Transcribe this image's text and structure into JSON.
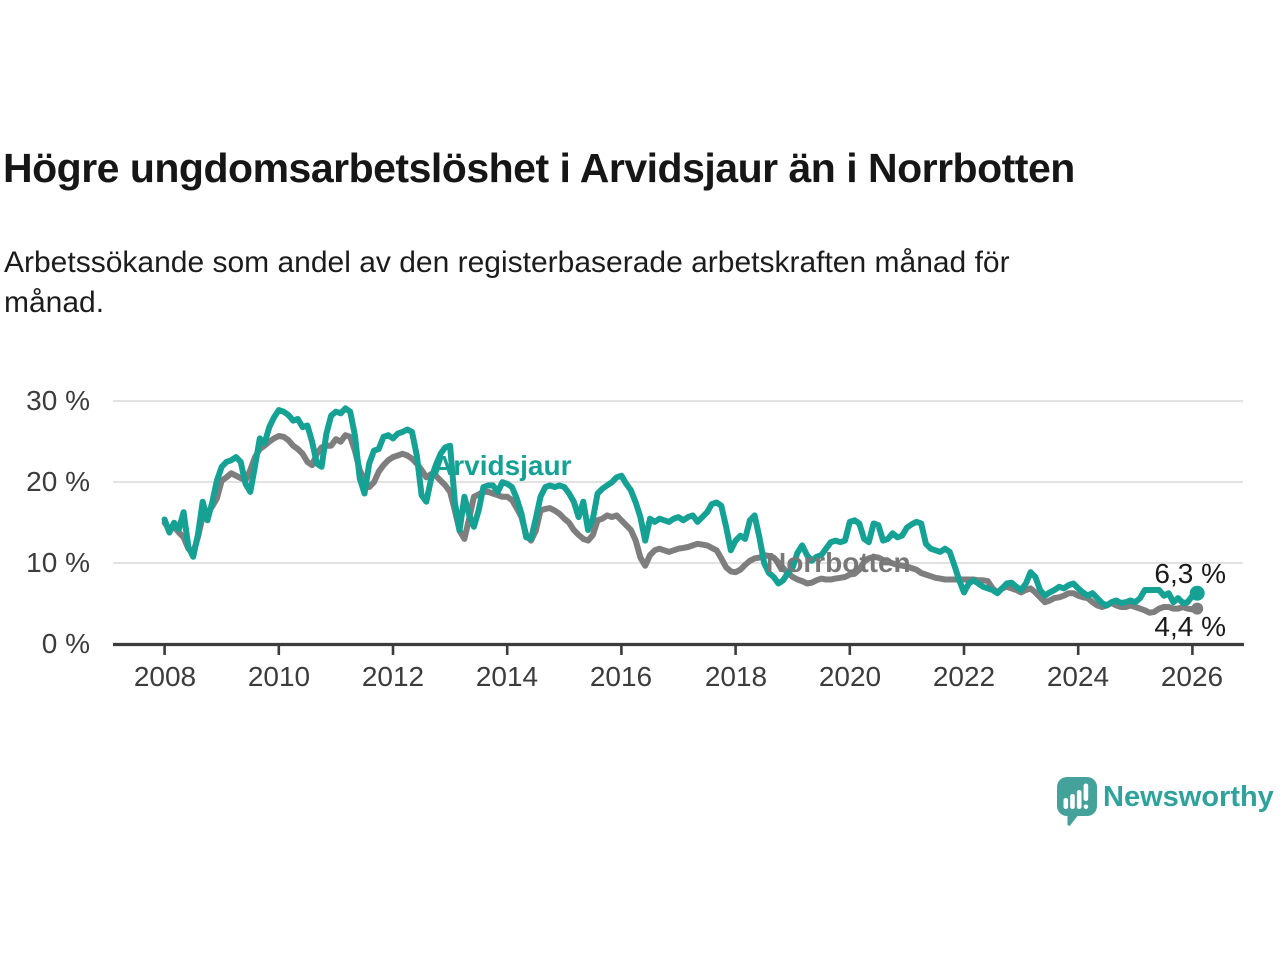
{
  "header": {
    "title": "Högre ungdomsarbetslöshet i Arvidsjaur än i Norrbotten",
    "subtitle_line1": "Arbetssökande som andel av den registerbaserade arbetskraften månad för",
    "subtitle_line2": "månad."
  },
  "chart_data": {
    "type": "line",
    "unit": "percent",
    "frequency": "monthly",
    "x_start": "2008-01",
    "x_end": "2026-02",
    "ylim": [
      0,
      30
    ],
    "grid": "horizontal",
    "axis_color": "#3c3c3c",
    "gridline_color": "#e2e2e2",
    "y_ticks": [
      "30 %",
      "20 %",
      "10 %",
      "0 %"
    ],
    "x_ticks": [
      "2008",
      "2010",
      "2012",
      "2014",
      "2016",
      "2018",
      "2020",
      "2022",
      "2024",
      "2026"
    ],
    "series": [
      {
        "name": "Arvidsjaur",
        "label": "Arvidsjaur",
        "color": "#16a195",
        "end_label": "6,3 %",
        "end_value": 6.3,
        "values": [
          15.4,
          13.8,
          15.0,
          14.2,
          16.3,
          12.0,
          10.8,
          13.5,
          17.6,
          15.3,
          17.5,
          20.2,
          21.9,
          22.5,
          22.7,
          23.1,
          22.5,
          19.8,
          18.8,
          22.0,
          25.4,
          24.8,
          26.8,
          28.0,
          28.9,
          28.7,
          28.3,
          27.6,
          27.8,
          26.8,
          27.0,
          25.0,
          22.3,
          21.9,
          26.0,
          28.2,
          28.7,
          28.5,
          29.1,
          28.7,
          25.8,
          20.5,
          18.6,
          22.3,
          23.9,
          24.1,
          25.6,
          25.8,
          25.4,
          26.0,
          26.2,
          26.5,
          26.2,
          23.3,
          18.4,
          17.6,
          20.4,
          22.1,
          23.5,
          24.3,
          24.5,
          17.5,
          14.1,
          18.2,
          16.0,
          14.5,
          16.5,
          19.4,
          19.6,
          19.6,
          18.8,
          20.0,
          19.8,
          19.4,
          18.0,
          16.1,
          13.2,
          13.0,
          15.5,
          18.2,
          19.4,
          19.6,
          19.4,
          19.6,
          19.4,
          18.6,
          17.6,
          15.7,
          17.6,
          14.1,
          15.5,
          18.6,
          19.2,
          19.6,
          20.0,
          20.6,
          20.8,
          19.8,
          19.0,
          17.5,
          15.7,
          12.8,
          15.5,
          15.1,
          15.5,
          15.3,
          15.1,
          15.5,
          15.7,
          15.3,
          15.7,
          15.9,
          15.1,
          15.7,
          16.3,
          17.3,
          17.5,
          17.1,
          14.5,
          11.6,
          12.8,
          13.4,
          13.0,
          15.3,
          15.9,
          13.2,
          10.0,
          8.8,
          8.3,
          7.5,
          7.9,
          8.8,
          9.5,
          11.3,
          12.2,
          11.0,
          10.3,
          10.8,
          11.0,
          11.8,
          12.6,
          12.8,
          12.6,
          12.8,
          15.1,
          15.3,
          14.9,
          13.0,
          12.6,
          14.9,
          14.7,
          12.8,
          13.0,
          13.7,
          13.2,
          13.4,
          14.4,
          14.8,
          15.1,
          14.9,
          12.4,
          11.8,
          11.6,
          11.4,
          11.8,
          11.4,
          9.7,
          7.9,
          6.4,
          7.5,
          7.9,
          7.5,
          7.1,
          6.9,
          6.7,
          6.3,
          6.9,
          7.5,
          7.6,
          7.1,
          6.7,
          7.5,
          8.9,
          8.3,
          6.7,
          6.0,
          6.4,
          6.7,
          7.1,
          6.9,
          7.3,
          7.5,
          6.9,
          6.4,
          6.0,
          6.3,
          5.7,
          5.1,
          4.8,
          5.2,
          5.4,
          5.1,
          5.2,
          5.4,
          5.2,
          5.7,
          6.7,
          6.7,
          6.7,
          6.7,
          6.0,
          6.3,
          5.2,
          5.7,
          5.1,
          5.2,
          6.0,
          6.3
        ]
      },
      {
        "name": "Norrbotten",
        "label": "Norrbotten",
        "color": "#7e7e7e",
        "end_label": "4,4 %",
        "end_value": 4.4,
        "values": [
          15.0,
          14.2,
          14.5,
          13.8,
          13.2,
          11.8,
          11.3,
          13.2,
          15.8,
          16.2,
          17.0,
          18.0,
          20.2,
          20.6,
          21.1,
          20.8,
          20.5,
          20.2,
          21.5,
          23.1,
          24.1,
          24.5,
          25.0,
          25.4,
          25.7,
          25.6,
          25.2,
          24.5,
          24.1,
          23.5,
          22.5,
          22.1,
          23.5,
          24.3,
          24.5,
          24.5,
          25.3,
          25.0,
          25.8,
          25.6,
          23.9,
          21.5,
          20.2,
          19.4,
          20.0,
          21.3,
          22.1,
          22.7,
          23.1,
          23.3,
          23.5,
          23.3,
          22.9,
          22.3,
          21.5,
          20.6,
          21.0,
          20.8,
          20.2,
          19.6,
          18.8,
          16.5,
          14.0,
          13.0,
          15.5,
          18.2,
          18.5,
          18.8,
          18.8,
          18.6,
          18.4,
          18.2,
          18.2,
          17.8,
          16.8,
          15.7,
          13.5,
          12.8,
          14.0,
          16.5,
          16.7,
          16.8,
          16.5,
          16.1,
          15.5,
          15.0,
          14.1,
          13.5,
          13.0,
          12.8,
          13.5,
          15.3,
          15.5,
          15.9,
          15.7,
          15.9,
          15.3,
          14.7,
          14.1,
          12.8,
          10.7,
          9.7,
          11.0,
          11.6,
          11.8,
          11.6,
          11.4,
          11.6,
          11.8,
          11.9,
          12.0,
          12.2,
          12.4,
          12.3,
          12.2,
          11.9,
          11.6,
          10.6,
          9.5,
          9.0,
          8.9,
          9.2,
          9.8,
          10.3,
          10.6,
          10.7,
          11.0,
          10.9,
          10.7,
          10.1,
          9.4,
          8.8,
          8.3,
          8.0,
          7.8,
          7.5,
          7.6,
          7.9,
          8.1,
          8.0,
          8.0,
          8.1,
          8.2,
          8.3,
          8.6,
          8.7,
          9.2,
          10.2,
          10.6,
          10.8,
          10.7,
          10.4,
          10.2,
          10.0,
          9.8,
          9.7,
          9.6,
          9.4,
          9.2,
          8.8,
          8.6,
          8.4,
          8.2,
          8.1,
          8.0,
          8.0,
          8.0,
          8.0,
          8.0,
          8.0,
          8.0,
          7.9,
          7.9,
          7.8,
          6.9,
          6.4,
          6.9,
          7.1,
          6.9,
          6.7,
          6.4,
          6.7,
          6.9,
          6.4,
          5.8,
          5.2,
          5.4,
          5.7,
          5.8,
          6.0,
          6.3,
          6.3,
          6.0,
          5.8,
          5.7,
          5.2,
          4.8,
          4.6,
          4.8,
          5.1,
          4.8,
          4.6,
          4.6,
          4.8,
          4.6,
          4.4,
          4.2,
          3.9,
          4.0,
          4.4,
          4.6,
          4.6,
          4.4,
          4.4,
          4.6,
          4.4,
          4.3,
          4.4
        ]
      }
    ]
  },
  "branding": {
    "logo_text": "Newsworthy"
  }
}
